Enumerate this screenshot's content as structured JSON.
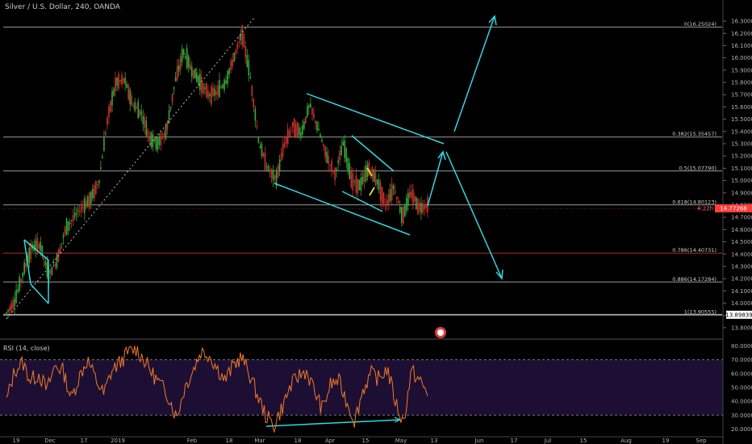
{
  "header": {
    "title": "Silver / U.S. Dollar, 240, OANDA",
    "rsi_label": "RSI (14, close)"
  },
  "colors": {
    "background": "#000000",
    "grid": "#5a5a5a",
    "candle_up": "#3aa83a",
    "candle_down": "#c8332c",
    "trendline": "#33d6e0",
    "yellow": "#e8e02a",
    "rsi_line": "#f0792a",
    "rsi_band": "#1d0f33",
    "price_badge": "#ff3b3b"
  },
  "chart_data": [
    {
      "type": "line",
      "title": "Silver / U.S. Dollar, 240, OANDA",
      "xlabel": "",
      "ylabel": "",
      "x_ticks": [
        "19",
        "Dec",
        "17",
        "2019",
        "Feb",
        "18",
        "Mar",
        "18",
        "Apr",
        "15",
        "May",
        "13",
        "Jun",
        "17",
        "Jul",
        "15",
        "Aug",
        "19",
        "Sep"
      ],
      "y_ticks": [
        "16.30000",
        "16.20000",
        "16.10000",
        "16.00000",
        "15.90000",
        "15.80000",
        "15.70000",
        "15.60000",
        "15.50000",
        "15.40000",
        "15.30000",
        "15.20000",
        "15.10000",
        "15.00000",
        "14.90000",
        "14.80000",
        "14.70000",
        "14.60000",
        "14.50000",
        "14.40000",
        "14.30000",
        "14.20000",
        "14.10000",
        "14.00000",
        "13.90000",
        "13.80000"
      ],
      "ylim": [
        13.76,
        16.34
      ],
      "current_price": {
        "value": 14.77268,
        "label": "14.77268",
        "change_label": "4:22h"
      },
      "fib_levels": [
        {
          "ratio": 0,
          "value": 16.25024,
          "label": "0(16.25024)",
          "color": "#9a9a9a"
        },
        {
          "ratio": 0.382,
          "value": 15.35457,
          "label": "0.382(15.35457)",
          "color": "#9a9a9a"
        },
        {
          "ratio": 0.5,
          "value": 15.0779,
          "label": "0.5(15.07790)",
          "color": "#9a9a9a"
        },
        {
          "ratio": 0.618,
          "value": 14.80123,
          "label": "0.618(14.80123)",
          "color": "#9a9a9a"
        },
        {
          "ratio": 0.786,
          "value": 14.40731,
          "label": "0.786(14.40731)",
          "color": "#b22a2a"
        },
        {
          "ratio": 0.886,
          "value": 14.17284,
          "label": "0.886(14.17284)",
          "color": "#9a9a9a"
        },
        {
          "ratio": 1,
          "value": 13.90555,
          "label": "1(13.90555)",
          "color": "#9a9a9a"
        }
      ],
      "last_label": "13.89839",
      "series": [
        {
          "values": [
            13.92,
            14.02,
            14.25,
            14.45,
            14.48,
            14.22,
            14.35,
            14.6,
            14.7,
            14.78,
            14.85,
            15.0,
            15.5,
            15.8,
            15.82,
            15.62,
            15.55,
            15.35,
            15.3,
            15.4,
            15.8,
            16.05,
            15.9,
            15.8,
            15.7,
            15.72,
            15.8,
            16.0,
            16.2,
            15.82,
            15.3,
            15.1,
            15.0,
            15.3,
            15.45,
            15.38,
            15.62,
            15.42,
            15.2,
            15.05,
            15.3,
            15.0,
            14.95,
            15.1,
            15.0,
            14.8,
            14.95,
            14.7,
            14.9,
            14.78,
            14.8
          ]
        }
      ]
    },
    {
      "type": "line",
      "title": "RSI (14, close)",
      "y_ticks": [
        "80.0000",
        "70.0000",
        "60.0000",
        "50.0000",
        "40.0000",
        "30.0000",
        "20.0000"
      ],
      "ylim": [
        15,
        82
      ],
      "bands": [
        30,
        70
      ],
      "series": [
        {
          "values": [
            40,
            62,
            68,
            55,
            60,
            48,
            66,
            62,
            42,
            58,
            70,
            56,
            45,
            62,
            68,
            75,
            78,
            70,
            60,
            52,
            44,
            28,
            50,
            62,
            76,
            74,
            64,
            55,
            66,
            72,
            60,
            44,
            30,
            22,
            35,
            50,
            58,
            62,
            48,
            34,
            52,
            55,
            40,
            26,
            48,
            60,
            56,
            64,
            40,
            24,
            62,
            55,
            45
          ]
        }
      ]
    }
  ],
  "axis": {
    "price_ticks": [
      "16.30000",
      "16.20000",
      "16.10000",
      "16.00000",
      "15.90000",
      "15.80000",
      "15.70000",
      "15.60000",
      "15.50000",
      "15.40000",
      "15.30000",
      "15.20000",
      "15.10000",
      "15.00000",
      "14.90000",
      "14.80000",
      "14.70000",
      "14.60000",
      "14.50000",
      "14.40000",
      "14.30000",
      "14.20000",
      "14.10000",
      "14.00000",
      "13.90000",
      "13.80000"
    ],
    "rsi_ticks": [
      "80.0000",
      "70.0000",
      "60.0000",
      "50.0000",
      "40.0000",
      "30.0000",
      "20.0000"
    ],
    "time_ticks": [
      "19",
      "Dec",
      "17",
      "2019",
      "Feb",
      "18",
      "Mar",
      "18",
      "Apr",
      "15",
      "May",
      "13",
      "Jun",
      "17",
      "Jul",
      "15",
      "Aug",
      "19",
      "Sep"
    ]
  }
}
